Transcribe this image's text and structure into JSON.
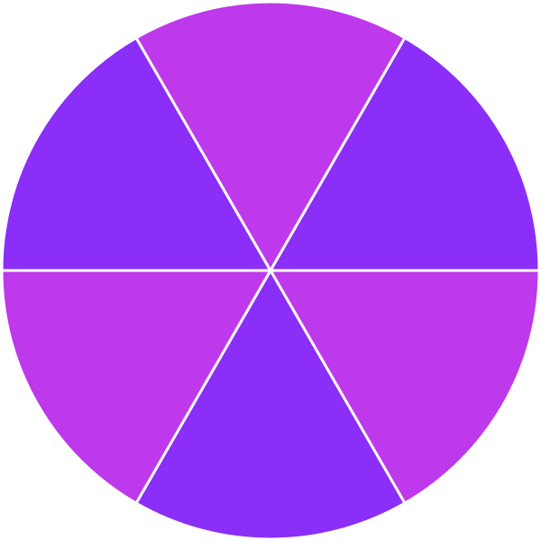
{
  "wheel": {
    "segment_count": 6,
    "divider_color": "#ffffff",
    "segments": [
      {
        "id": "segment-1",
        "color": "#8A2EF8"
      },
      {
        "id": "segment-2",
        "color": "#BE38EC"
      },
      {
        "id": "segment-3",
        "color": "#8A2EF8"
      },
      {
        "id": "segment-4",
        "color": "#BE38EC"
      },
      {
        "id": "segment-5",
        "color": "#8A2EF8"
      },
      {
        "id": "segment-6",
        "color": "#BE38EC"
      }
    ]
  }
}
